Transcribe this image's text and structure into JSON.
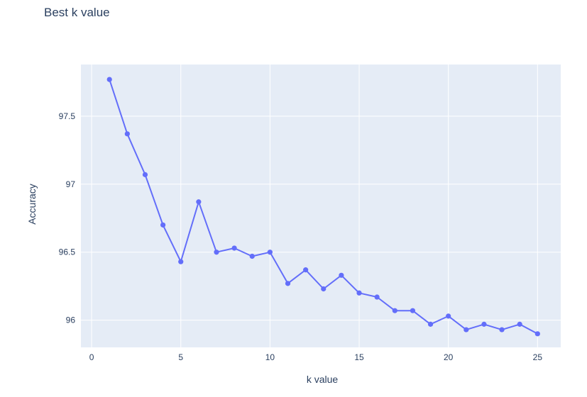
{
  "chart_data": {
    "type": "line",
    "title": "Best k value",
    "xlabel": "k value",
    "ylabel": "Accuracy",
    "xlim": [
      -0.6,
      26.3
    ],
    "ylim": [
      95.8,
      97.88
    ],
    "x_ticks": [
      0,
      5,
      10,
      15,
      20,
      25
    ],
    "x_tick_labels": [
      "0",
      "5",
      "10",
      "15",
      "20",
      "25"
    ],
    "y_ticks": [
      96,
      96.5,
      97,
      97.5
    ],
    "y_tick_labels": [
      "96",
      "96.5",
      "97",
      "97.5"
    ],
    "grid": true,
    "series": [
      {
        "x": [
          1,
          2,
          3,
          4,
          5,
          6,
          7,
          8,
          9,
          10,
          11,
          12,
          13,
          14,
          15,
          16,
          17,
          18,
          19,
          20,
          21,
          22,
          23,
          24,
          25
        ],
        "values": [
          97.77,
          97.37,
          97.07,
          96.7,
          96.43,
          96.87,
          96.5,
          96.53,
          96.47,
          96.5,
          96.27,
          96.37,
          96.23,
          96.33,
          96.2,
          96.17,
          96.07,
          96.07,
          95.97,
          96.03,
          95.93,
          95.97,
          95.93,
          95.97,
          95.9
        ]
      }
    ],
    "colors": {
      "line": "#636efa",
      "plot_bg": "#e5ecf6",
      "grid": "#ffffff",
      "text": "#2a3f5f"
    }
  }
}
